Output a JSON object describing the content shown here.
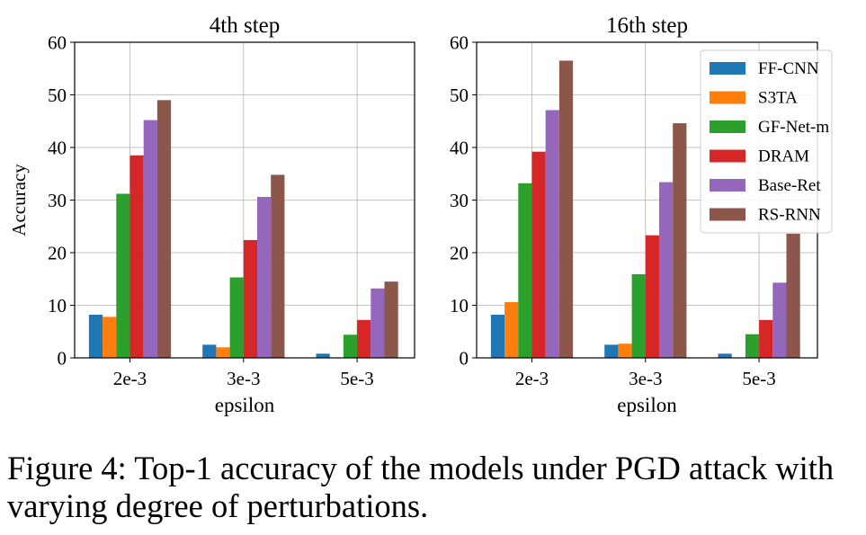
{
  "chart_data": [
    {
      "type": "bar",
      "title": "4th step",
      "xlabel": "epsilon",
      "ylabel": "Accuracy",
      "categories": [
        "2e-3",
        "3e-3",
        "5e-3"
      ],
      "ylim": [
        0,
        60
      ],
      "yticks": [
        "0",
        "10",
        "20",
        "30",
        "40",
        "50",
        "60"
      ],
      "grid": true,
      "series": [
        {
          "name": "FF-CNN",
          "color": "#1f77b4",
          "values": [
            8.2,
            2.5,
            0.8
          ]
        },
        {
          "name": "S3TA",
          "color": "#ff7f0e",
          "values": [
            7.8,
            2.0,
            0
          ]
        },
        {
          "name": "GF-Net-m",
          "color": "#2ca02c",
          "values": [
            31.2,
            15.3,
            4.4
          ]
        },
        {
          "name": "DRAM",
          "color": "#d62728",
          "values": [
            38.5,
            22.4,
            7.2
          ]
        },
        {
          "name": "Base-Ret",
          "color": "#9467bd",
          "values": [
            45.2,
            30.6,
            13.2
          ]
        },
        {
          "name": "RS-RNN",
          "color": "#8c564b",
          "values": [
            49.0,
            34.8,
            14.5
          ]
        }
      ]
    },
    {
      "type": "bar",
      "title": "16th step",
      "xlabel": "epsilon",
      "ylabel": "",
      "categories": [
        "2e-3",
        "3e-3",
        "5e-3"
      ],
      "ylim": [
        0,
        60
      ],
      "yticks": [
        "0",
        "10",
        "20",
        "30",
        "40",
        "50",
        "60"
      ],
      "grid": true,
      "legend": "top-right",
      "series": [
        {
          "name": "FF-CNN",
          "color": "#1f77b4",
          "values": [
            8.2,
            2.5,
            0.8
          ]
        },
        {
          "name": "S3TA",
          "color": "#ff7f0e",
          "values": [
            10.6,
            2.7,
            0
          ]
        },
        {
          "name": "GF-Net-m",
          "color": "#2ca02c",
          "values": [
            33.2,
            15.9,
            4.5
          ]
        },
        {
          "name": "DRAM",
          "color": "#d62728",
          "values": [
            39.2,
            23.3,
            7.2
          ]
        },
        {
          "name": "Base-Ret",
          "color": "#9467bd",
          "values": [
            47.1,
            33.4,
            14.3
          ]
        },
        {
          "name": "RS-RNN",
          "color": "#8c564b",
          "values": [
            56.5,
            44.6,
            23.6
          ]
        }
      ]
    }
  ],
  "caption": "Figure 4: Top-1 accuracy of the models under PGD attack with varying degree of perturbations."
}
